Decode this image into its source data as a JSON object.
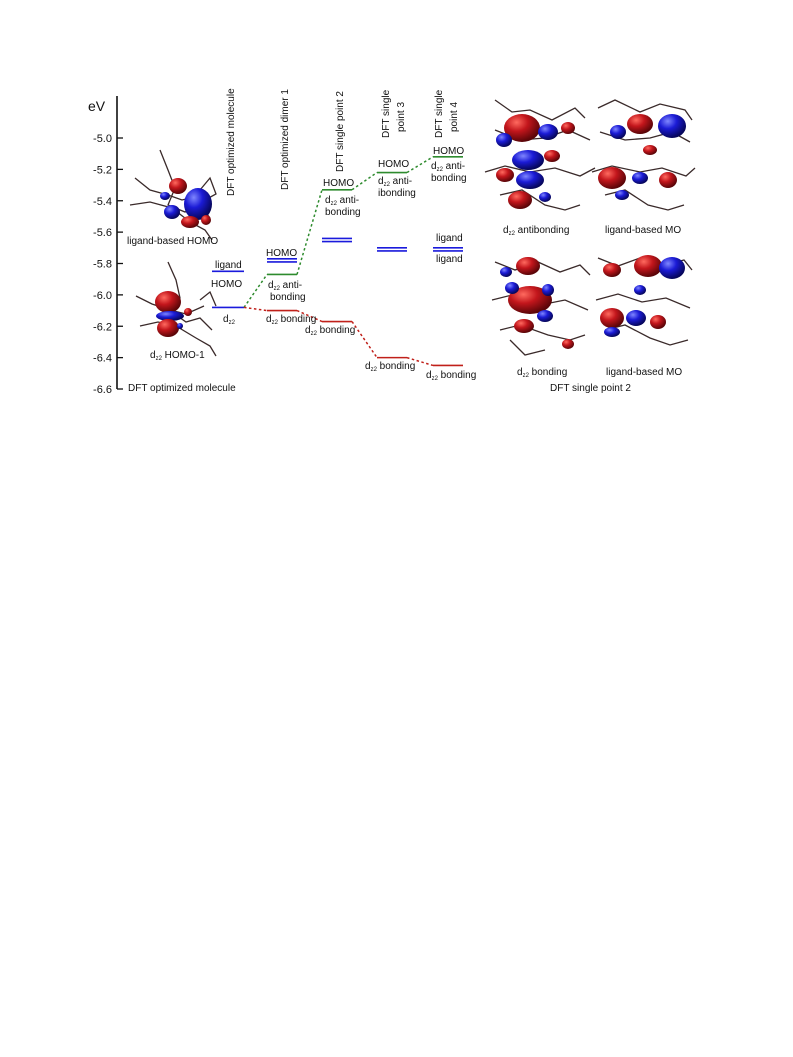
{
  "axis": {
    "unit": "eV",
    "ticks": [
      "-5.0",
      "-5.2",
      "-5.4",
      "-5.6",
      "-5.8",
      "-6.0",
      "-6.2",
      "-6.4",
      "-6.6"
    ],
    "ylim": [
      -6.6,
      -4.8
    ]
  },
  "columns": [
    {
      "line1": "DFT optimized molecule",
      "line2": ""
    },
    {
      "line1": "DFT optimized dimer 1",
      "line2": ""
    },
    {
      "line1": "DFT single point 2",
      "line2": ""
    },
    {
      "line1": "DFT single",
      "line2": "point 3"
    },
    {
      "line1": "DFT single",
      "line2": "point 4"
    }
  ],
  "labels": {
    "m_ligand": "ligand",
    "m_homo": "HOMO",
    "m_dz2": "d",
    "d1_homo": "HOMO",
    "d1_anti": "d",
    "d1_anti_rest": " anti-",
    "d1_anti2": "bonding",
    "d1_bond": "d",
    "d1_bond_rest": " bonding",
    "s2_homo": "HOMO",
    "s2_anti": "d",
    "s2_anti_rest": " anti-",
    "s2_anti2": "bonding",
    "s2_bond": "d",
    "s2_bond_rest": " bonding",
    "s3_homo": "HOMO",
    "s3_anti": "d",
    "s3_anti_rest": " anti-",
    "s3_anti2": "ibonding",
    "s3_bond": "d",
    "s3_bond_rest": " bonding",
    "s4_homo": "HOMO",
    "s4_anti": "d",
    "s4_anti_rest": " anti-",
    "s4_anti2": "bonding",
    "s4_ligand1": "ligand",
    "s4_ligand2": "ligand",
    "s4_bond": "d",
    "s4_bond_rest": " bonding",
    "subscript": "z2"
  },
  "captions": {
    "left_top": "ligand-based HOMO",
    "left_bottom_d": "d",
    "left_bottom_rest": " HOMO-1",
    "left_footer": "DFT optimized molecule",
    "r_anti_d": "d",
    "r_anti_rest": " antibonding",
    "r_ligand1": "ligand-based MO",
    "r_bond_d": "d",
    "r_bond_rest": " bonding",
    "r_ligand2": "ligand-based MO",
    "r_footer": "DFT single point 2"
  },
  "levels": {
    "molecule": {
      "ligand_homo": -5.85,
      "dz2": -6.08
    },
    "dimer1": {
      "ligand_pair": [
        -5.77,
        -5.79
      ],
      "dz2_anti": -5.87,
      "dz2_bond": -6.1
    },
    "single2": {
      "ligand_pair": [
        -5.64,
        -5.66
      ],
      "dz2_anti": -5.33,
      "dz2_bond": -6.17
    },
    "single3": {
      "ligand_pair": [
        -5.7,
        -5.72
      ],
      "dz2_anti": -5.22,
      "dz2_bond": -6.4
    },
    "single4": {
      "ligand_pair": [
        -5.7,
        -5.72
      ],
      "dz2_anti": -5.12,
      "dz2_bond": -6.45
    }
  },
  "colors": {
    "ligand": "#1a1adc",
    "antibonding": "#2e8b2e",
    "bonding": "#c0201a",
    "lobe_red": "#c3161c",
    "lobe_blue": "#1b1bd6"
  }
}
